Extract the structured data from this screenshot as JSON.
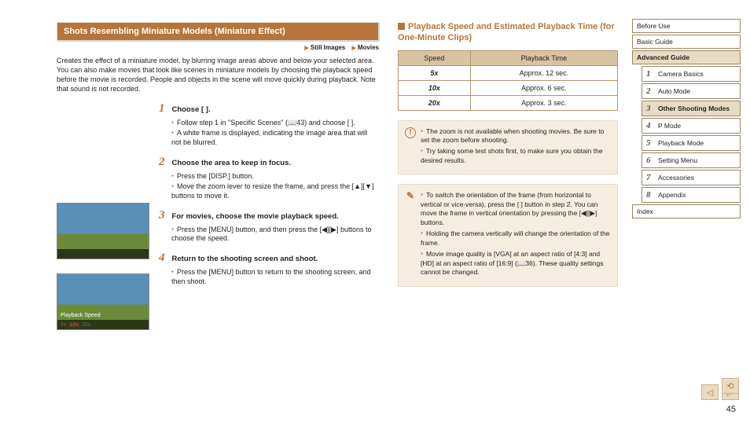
{
  "left": {
    "title": "Shots Resembling Miniature Models (Miniature Effect)",
    "tag1": "Still Images",
    "tag2": "Movies",
    "intro": "Creates the effect of a miniature model, by blurring image areas above and below your selected area.\nYou can also make movies that look like scenes in miniature models by choosing the playback speed before the movie is recorded. People and objects in the scene will move quickly during playback. Note that sound is not recorded.",
    "steps": [
      {
        "n": "1",
        "h": "Choose [ ].",
        "items": [
          "Follow step 1 in \"Specific Scenes\" (📖43) and choose [ ].",
          "A white frame is displayed, indicating the image area that will not be blurred."
        ]
      },
      {
        "n": "2",
        "h": "Choose the area to keep in focus.",
        "items": [
          "Press the [DISP.] button.",
          "Move the zoom lever to resize the frame, and press the [▲][▼] buttons to move it."
        ]
      },
      {
        "n": "3",
        "h": "For movies, choose the movie playback speed.",
        "items": [
          "Press the [MENU] button, and then press the [◀][▶] buttons to choose the speed."
        ]
      },
      {
        "n": "4",
        "h": "Return to the shooting screen and shoot.",
        "items": [
          "Press the [MENU] button to return to the shooting screen, and then shoot."
        ]
      }
    ]
  },
  "mid": {
    "title": "Playback Speed and Estimated Playback Time (for One-Minute Clips)",
    "table": {
      "headers": [
        "Speed",
        "Playback Time"
      ],
      "rows": [
        [
          "5x",
          "Approx. 12 sec."
        ],
        [
          "10x",
          "Approx. 6 sec."
        ],
        [
          "20x",
          "Approx. 3 sec."
        ]
      ]
    },
    "note1": [
      "The zoom is not available when shooting movies. Be sure to set the zoom before shooting.",
      "Try taking some test shots first, to make sure you obtain the desired results."
    ],
    "note2": [
      "To switch the orientation of the frame (from horizontal to vertical or vice-versa), press the [ ] button in step 2. You can move the frame in vertical orientation by pressing the [◀][▶] buttons.",
      "Holding the camera vertically will change the orientation of the frame.",
      "Movie image quality is [VGA] at an aspect ratio of [4:3] and [HD] at an aspect ratio of [16:9] (📖36). These quality settings cannot be changed."
    ]
  },
  "nav": {
    "top": [
      "Before Use",
      "Basic Guide"
    ],
    "adv": "Advanced Guide",
    "chapters": [
      {
        "n": "1",
        "t": "Camera Basics"
      },
      {
        "n": "2",
        "t": "Auto Mode"
      },
      {
        "n": "3",
        "t": "Other Shooting Modes"
      },
      {
        "n": "4",
        "t": "P Mode"
      },
      {
        "n": "5",
        "t": "Playback Mode"
      },
      {
        "n": "6",
        "t": "Setting Menu"
      },
      {
        "n": "7",
        "t": "Accessories"
      },
      {
        "n": "8",
        "t": "Appendix"
      }
    ],
    "index": "Index"
  },
  "page_number": "45"
}
